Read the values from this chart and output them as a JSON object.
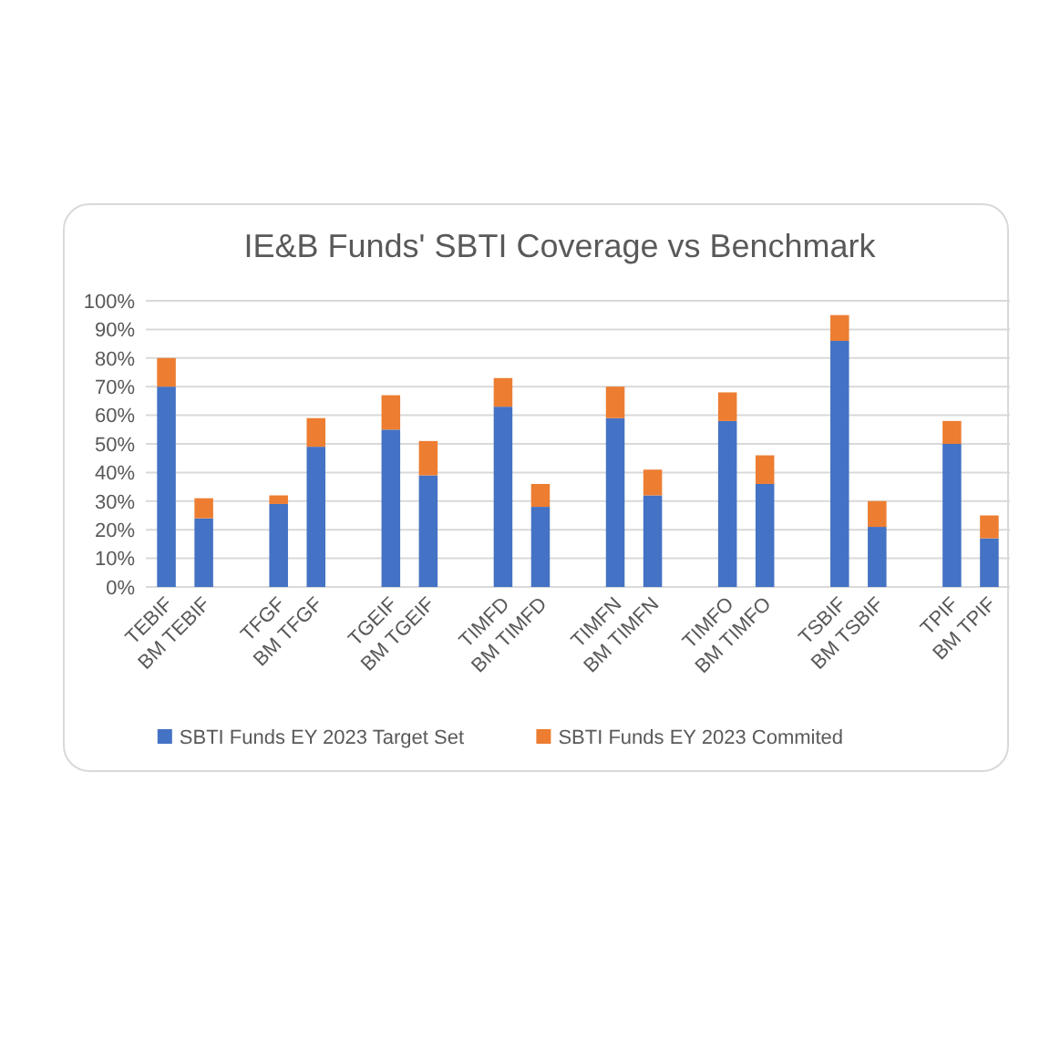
{
  "chart_data": {
    "type": "bar",
    "title": "IE&B Funds' SBTI Coverage vs Benchmark",
    "stacked": true,
    "categories": [
      "TEBIF",
      "BM TEBIF",
      null,
      "TFGF",
      "BM TFGF",
      null,
      "TGEIF",
      "BM TGEIF",
      null,
      "TIMFD",
      "BM TIMFD",
      null,
      "TIMFN",
      "BM TIMFN",
      null,
      "TIMFO",
      "BM TIMFO",
      null,
      "TSBIF",
      "BM TSBIF",
      null,
      "TPIF",
      "BM TPIF"
    ],
    "series": [
      {
        "name": "SBTI Funds EY 2023 Target Set",
        "color": "#4472c4",
        "values": [
          70,
          24,
          null,
          29,
          49,
          null,
          55,
          39,
          null,
          63,
          28,
          null,
          59,
          32,
          null,
          58,
          36,
          null,
          86,
          21,
          null,
          50,
          17
        ]
      },
      {
        "name": "SBTI Funds EY 2023 Commited",
        "color": "#ed7d31",
        "values": [
          10,
          7,
          null,
          3,
          10,
          null,
          12,
          12,
          null,
          10,
          8,
          null,
          11,
          9,
          null,
          10,
          10,
          null,
          9,
          9,
          null,
          8,
          8
        ]
      }
    ],
    "ylim": [
      0,
      100
    ],
    "yticks": [
      {
        "value": 0,
        "label": "0%"
      },
      {
        "value": 10,
        "label": "10%"
      },
      {
        "value": 20,
        "label": "20%"
      },
      {
        "value": 30,
        "label": "30%"
      },
      {
        "value": 40,
        "label": "40%"
      },
      {
        "value": 50,
        "label": "50%"
      },
      {
        "value": 60,
        "label": "60%"
      },
      {
        "value": 70,
        "label": "70%"
      },
      {
        "value": 80,
        "label": "80%"
      },
      {
        "value": 90,
        "label": "90%"
      },
      {
        "value": 100,
        "label": "100%"
      }
    ],
    "grid": "y",
    "legend": "bottom"
  }
}
